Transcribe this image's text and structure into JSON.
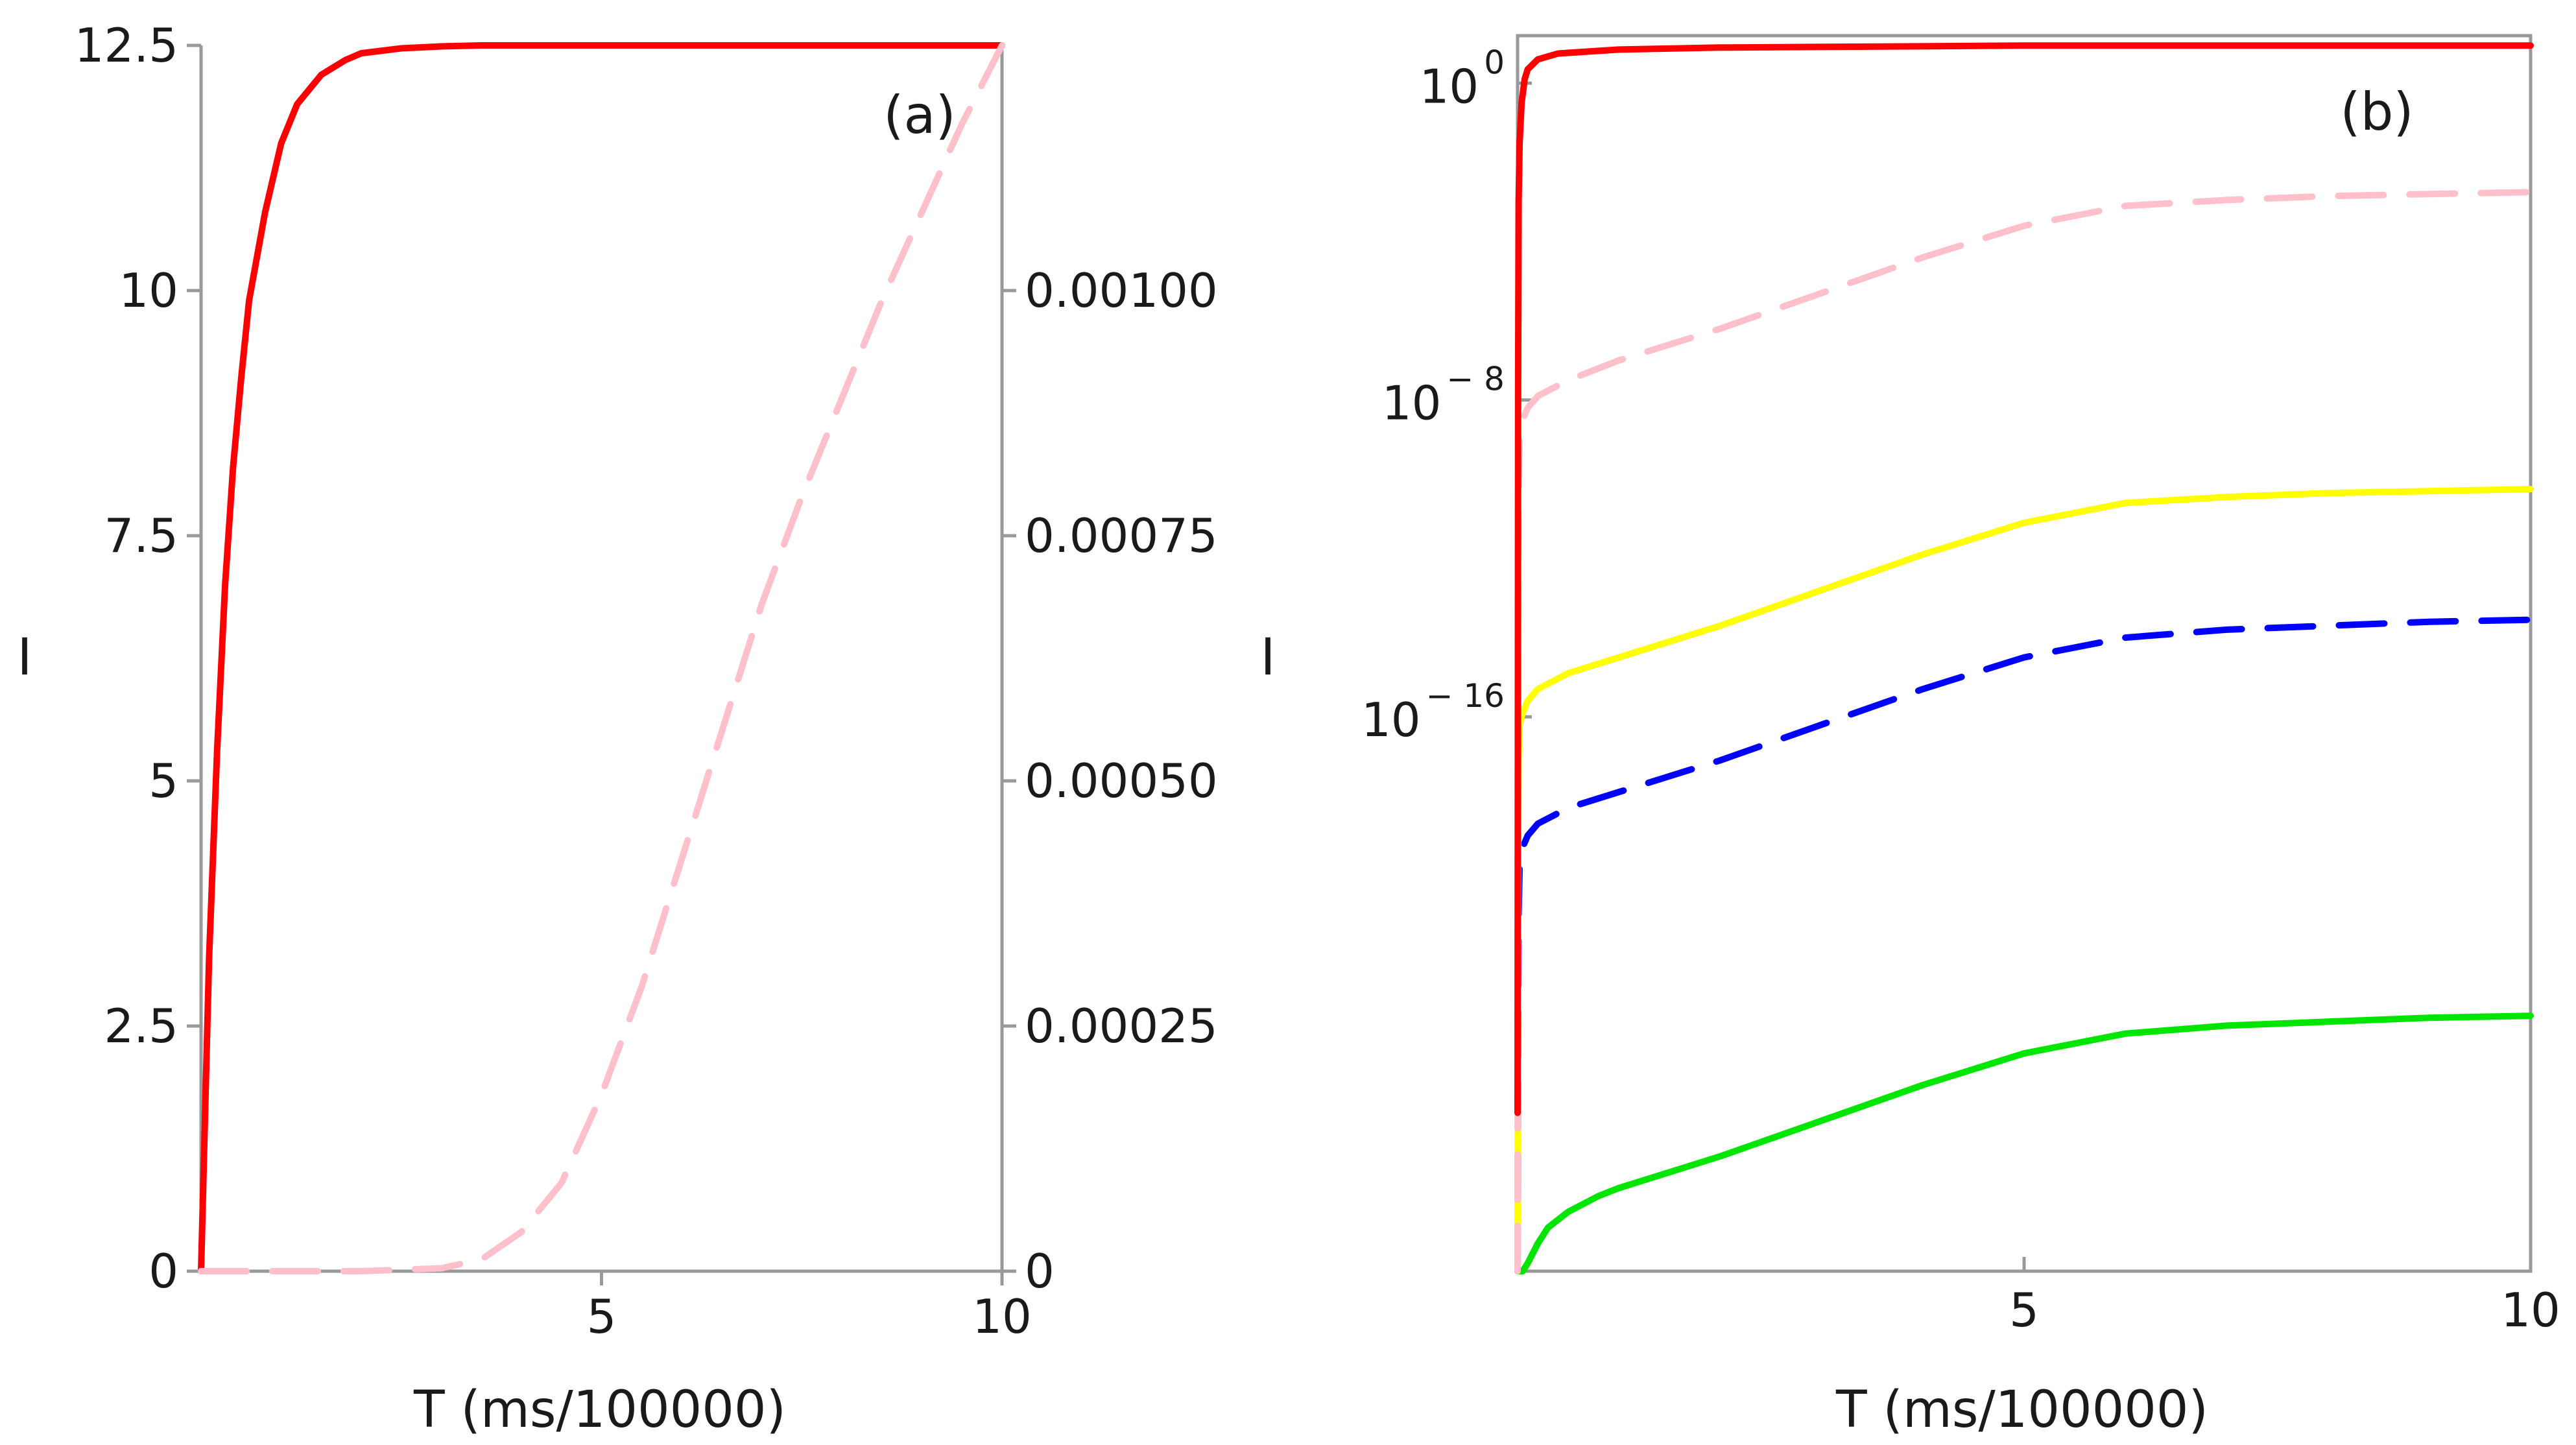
{
  "chart_data": [
    {
      "panel": "(a)",
      "type": "line",
      "xlabel": "T (ms/100000)",
      "ylabel": "I",
      "xlim": [
        0,
        10
      ],
      "ylim": [
        0,
        12.5
      ],
      "xticks": [
        "5",
        "10"
      ],
      "yticks_left": [
        "0",
        "2.5",
        "5",
        "7.5",
        "10",
        "12.5"
      ],
      "ylim_right": [
        0,
        0.00125
      ],
      "yticks_right": [
        "0",
        "0.00025",
        "0.00050",
        "0.00075",
        "0.00100"
      ],
      "series": [
        {
          "name": "solid red (left axis)",
          "color": "#ff0000",
          "style": "solid",
          "axis": "left",
          "x": [
            0,
            0.1,
            0.2,
            0.3,
            0.4,
            0.5,
            0.6,
            0.8,
            1.0,
            1.2,
            1.5,
            1.8,
            2.0,
            2.5,
            3.0,
            3.5,
            4.0,
            5.0,
            6.0,
            7.0,
            8.0,
            9.0,
            10.0
          ],
          "y": [
            0,
            3.2,
            5.3,
            7.0,
            8.2,
            9.1,
            9.9,
            10.8,
            11.5,
            11.9,
            12.2,
            12.35,
            12.42,
            12.47,
            12.49,
            12.5,
            12.5,
            12.5,
            12.5,
            12.5,
            12.5,
            12.5,
            12.5
          ]
        },
        {
          "name": "dashed pink (right axis)",
          "color": "#ffc0cb",
          "style": "dashed",
          "axis": "right",
          "x": [
            0,
            1,
            2,
            3,
            3.5,
            4.0,
            4.5,
            5.0,
            5.5,
            6.0,
            6.5,
            7.0,
            7.5,
            8.0,
            8.5,
            9.0,
            9.5,
            10.0
          ],
          "y": [
            0,
            0,
            0,
            3e-06,
            1.2e-05,
            4e-05,
            9e-05,
            0.00018,
            0.00029,
            0.00042,
            0.00055,
            0.00068,
            0.00079,
            0.00089,
            0.00099,
            0.00108,
            0.00117,
            0.00125
          ]
        }
      ]
    },
    {
      "panel": "(b)",
      "type": "line",
      "yscale": "log",
      "xlabel": "T (ms/100000)",
      "ylabel": "I",
      "xlim": [
        0,
        10
      ],
      "ylim_log10": [
        -30,
        1.2
      ],
      "xticks": [
        "5",
        "10"
      ],
      "yticks": [
        {
          "base": "10",
          "exp": "0"
        },
        {
          "base": "10",
          "exp": "− 8"
        },
        {
          "base": "10",
          "exp": "− 16"
        }
      ],
      "series": [
        {
          "name": "solid red",
          "color": "#ff0000",
          "style": "solid",
          "x": [
            0,
            0.005,
            0.01,
            0.02,
            0.04,
            0.07,
            0.1,
            0.2,
            0.4,
            1.0,
            2.0,
            5.0,
            10.0
          ],
          "log10_y": [
            -26,
            -8,
            -3,
            -1.5,
            -0.5,
            0.1,
            0.35,
            0.6,
            0.75,
            0.85,
            0.9,
            0.95,
            0.95
          ]
        },
        {
          "name": "dashed pink",
          "color": "#ffc0cb",
          "style": "dashed",
          "x": [
            0,
            0.005,
            0.01,
            0.02,
            0.05,
            0.1,
            0.2,
            0.5,
            1.0,
            2.0,
            3.0,
            4.0,
            5.0,
            6.0,
            7.0,
            8.0,
            9.0,
            10.0
          ],
          "log10_y": [
            -30,
            -14,
            -10,
            -9,
            -8.5,
            -8.2,
            -7.9,
            -7.5,
            -7.0,
            -6.2,
            -5.3,
            -4.4,
            -3.6,
            -3.1,
            -2.95,
            -2.85,
            -2.8,
            -2.75
          ]
        },
        {
          "name": "solid yellow",
          "color": "#ffff00",
          "style": "solid",
          "x": [
            0,
            0.005,
            0.01,
            0.02,
            0.05,
            0.1,
            0.2,
            0.5,
            1.0,
            2.0,
            3.0,
            4.0,
            5.0,
            6.0,
            7.0,
            8.0,
            9.0,
            10.0
          ],
          "log10_y": [
            -30,
            -20,
            -17,
            -16.2,
            -15.9,
            -15.6,
            -15.3,
            -14.9,
            -14.5,
            -13.7,
            -12.8,
            -11.9,
            -11.1,
            -10.6,
            -10.45,
            -10.35,
            -10.3,
            -10.25
          ]
        },
        {
          "name": "dashed blue",
          "color": "#0000ff",
          "style": "dashed",
          "x": [
            0,
            0.005,
            0.01,
            0.02,
            0.05,
            0.1,
            0.2,
            0.5,
            1.0,
            2.0,
            3.0,
            4.0,
            5.0,
            6.0,
            7.0,
            8.0,
            9.0,
            10.0
          ],
          "log10_y": [
            -30,
            -24,
            -21,
            -19.7,
            -19.3,
            -19.0,
            -18.7,
            -18.3,
            -17.9,
            -17.1,
            -16.2,
            -15.3,
            -14.5,
            -14.0,
            -13.8,
            -13.7,
            -13.6,
            -13.55
          ]
        },
        {
          "name": "solid green",
          "color": "#00e600",
          "style": "solid",
          "x": [
            0,
            0.05,
            0.1,
            0.2,
            0.3,
            0.5,
            0.8,
            1.0,
            2.0,
            3.0,
            4.0,
            5.0,
            6.0,
            7.0,
            8.0,
            9.0,
            10.0
          ],
          "log10_y": [
            -30,
            -30,
            -29.8,
            -29.3,
            -28.9,
            -28.5,
            -28.1,
            -27.9,
            -27.1,
            -26.2,
            -25.3,
            -24.5,
            -24.0,
            -23.8,
            -23.7,
            -23.6,
            -23.55
          ]
        }
      ]
    }
  ]
}
